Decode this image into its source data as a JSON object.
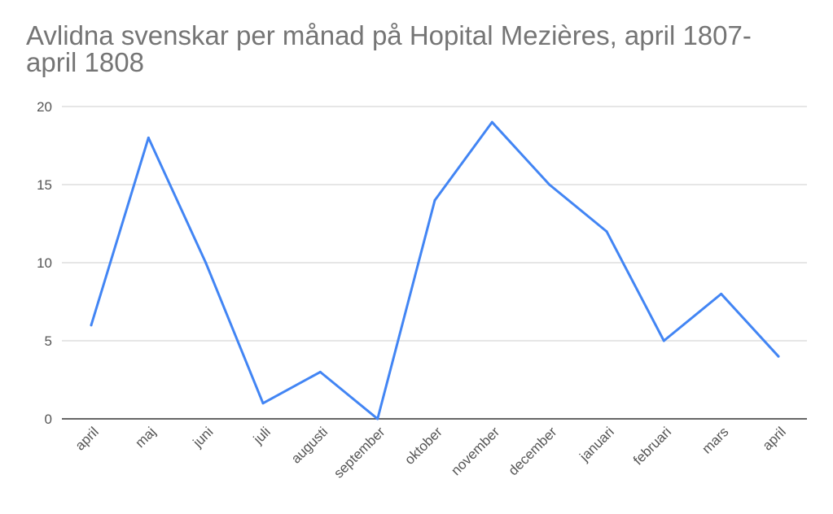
{
  "chart_data": {
    "type": "line",
    "title": "Avlidna svenskar per månad på Hopital Mezières, april 1807-april 1808",
    "xlabel": "",
    "ylabel": "",
    "categories": [
      "april",
      "maj",
      "juni",
      "juli",
      "augusti",
      "september",
      "oktober",
      "november",
      "december",
      "januari",
      "februari",
      "mars",
      "april"
    ],
    "series": [
      {
        "values": [
          6,
          18,
          10,
          1,
          3,
          0,
          14,
          19,
          15,
          12,
          5,
          8,
          4
        ],
        "color": "#4285f4"
      }
    ],
    "ylim": [
      0,
      20
    ],
    "yticks": [
      0,
      5,
      10,
      15,
      20
    ],
    "grid": true,
    "legend": "none",
    "colors": {
      "line": "#4285f4",
      "grid": "#cccccc",
      "axis": "#333333",
      "text": "#555555",
      "title": "#757575"
    }
  }
}
